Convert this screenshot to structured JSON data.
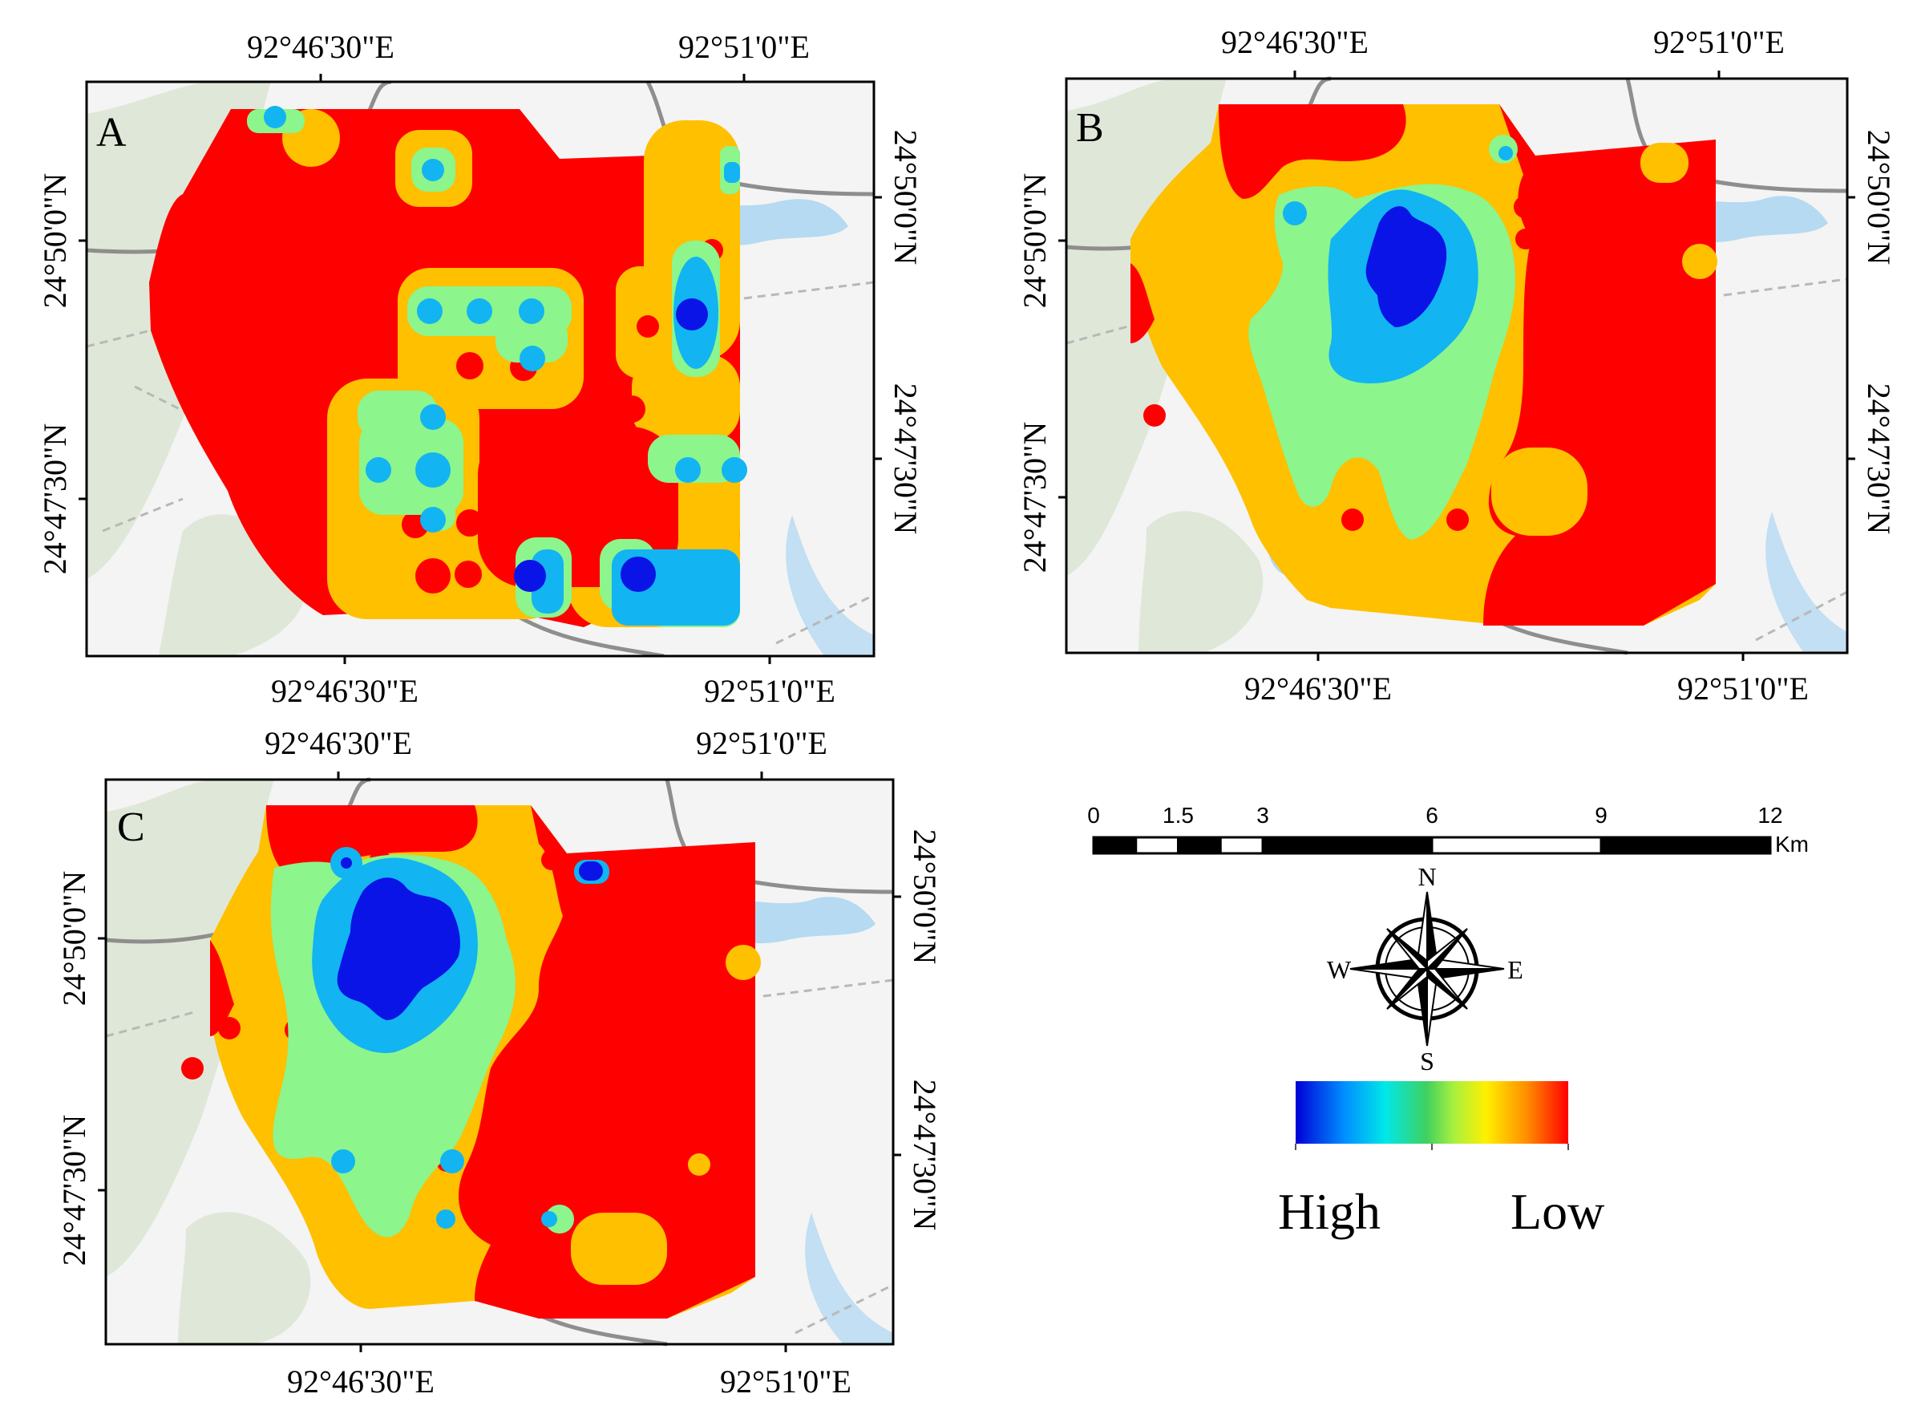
{
  "colors": {
    "very_high": "#0A14E6",
    "high": "#12B4F2",
    "medium": "#8CF58C",
    "low": "#FFC000",
    "very_low": "#FF0000",
    "basemap": "#F4F4F4",
    "water": "#B5DAF2",
    "vegetation": "#D6E2CC",
    "road": "#8E8E8E"
  },
  "panels": [
    {
      "id": "A",
      "label": "A",
      "lon_top": [
        "92°46'30\"E",
        "92°51'0\"E"
      ],
      "lon_bottom": [
        "92°46'30\"E",
        "92°51'0\"E"
      ],
      "lat_left": [
        "24°50'0\"N",
        "24°47'30\"N"
      ],
      "lat_right": [
        "24°50'0\"N",
        "24°47'30\"N"
      ]
    },
    {
      "id": "B",
      "label": "B",
      "lon_top": [
        "92°46'30\"E",
        "92°51'0\"E"
      ],
      "lon_bottom": [
        "92°46'30\"E",
        "92°51'0\"E"
      ],
      "lat_left": [
        "24°50'0\"N",
        "24°47'30\"N"
      ],
      "lat_right": [
        "24°50'0\"N",
        "24°47'30\"N"
      ]
    },
    {
      "id": "C",
      "label": "C",
      "lon_top": [
        "92°46'30\"E",
        "92°51'0\"E"
      ],
      "lon_bottom": [
        "92°46'30\"E",
        "92°51'0\"E"
      ],
      "lat_left": [
        "24°50'0\"N",
        "24°47'30\"N"
      ],
      "lat_right": [
        "24°50'0\"N",
        "24°47'30\"N"
      ]
    }
  ],
  "scale_bar": {
    "ticks": [
      "0",
      "1.5",
      "3",
      "6",
      "9",
      "12"
    ],
    "values": [
      0,
      1.5,
      3,
      6,
      9,
      12
    ],
    "unit": "Km"
  },
  "compass": {
    "n": "N",
    "s": "S",
    "e": "E",
    "w": "W"
  },
  "legend": {
    "high": "High",
    "low": "Low"
  }
}
